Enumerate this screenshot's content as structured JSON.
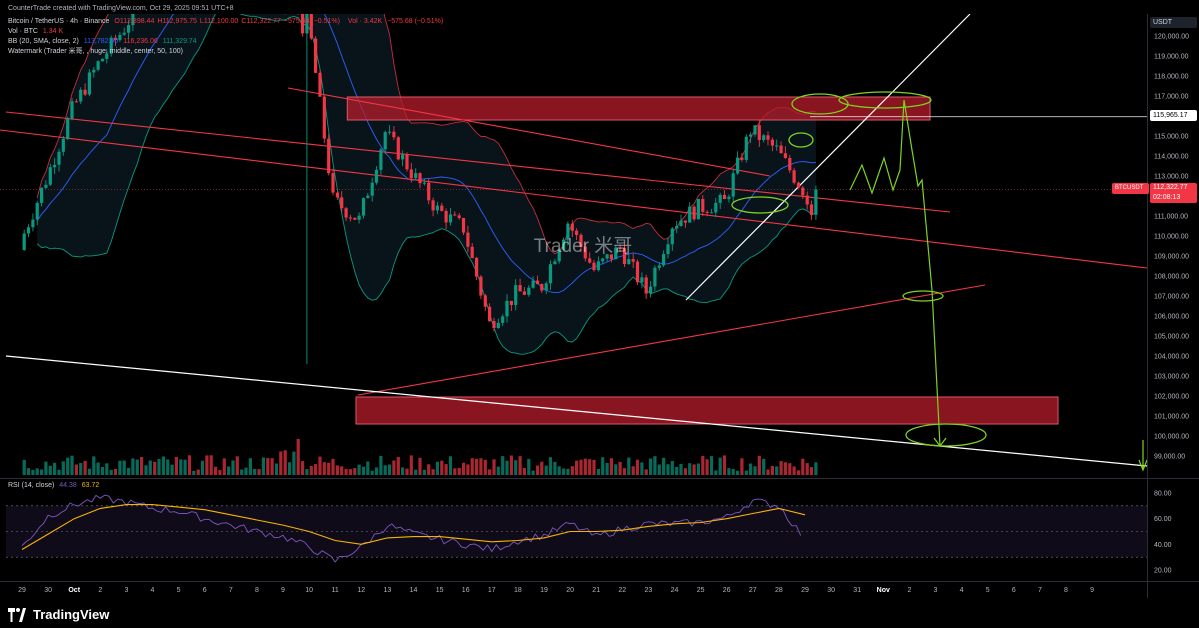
{
  "header": {
    "created_by": "CounterTrade created with TradingView.com, Oct 29, 2025 09:51 UTC+8",
    "symbol": "Bitcoin / TetherUS · 4h · Binance",
    "ohlc": [
      {
        "k": "O",
        "v": "112,898.44"
      },
      {
        "k": "H",
        "v": "112,975.75"
      },
      {
        "k": "L",
        "v": "112,100.00"
      },
      {
        "k": "C",
        "v": "112,322.77"
      },
      {
        "k": "",
        "v": "−575.68 (−0.51%)"
      }
    ],
    "vol_overlay": "Vol · 3.42K",
    "vol_change": "−575.68 (−0.51%)",
    "vol_line": "Vol · BTC",
    "vol_value": "1.34 K",
    "bb_line": "BB (20, SMA, close, 2)",
    "bb_values": [
      "113,782.90",
      "116,236.06",
      "111,329.74"
    ],
    "watermark_line": "Watermark (Trader 米哥, , huge, middle, center, 50, 100)"
  },
  "watermark_text": "Trader 米哥",
  "price_axis": {
    "currency": "USDT",
    "ticks": [
      "120,000.00",
      "119,000.00",
      "118,000.00",
      "117,000.00",
      "116,000.00",
      "115,000.00",
      "114,000.00",
      "113,000.00",
      "112,000.00",
      "111,000.00",
      "110,000.00",
      "109,000.00",
      "108,000.00",
      "107,000.00",
      "106,000.00",
      "105,000.00",
      "104,000.00",
      "103,000.00",
      "102,000.00",
      "101,000.00",
      "100,000.00",
      "99,000.00"
    ],
    "tag_level": "115,965.17",
    "tag_symbol": "BTCUSDT",
    "tag_price": "112,322.77",
    "tag_countdown": "02:08:13"
  },
  "rsi": {
    "label": "RSI (14, close)",
    "value1": "44.38",
    "value2": "63.72",
    "ticks": [
      "80.00",
      "60.00",
      "40.00",
      "20.00"
    ]
  },
  "time_axis": {
    "labels": [
      "29",
      "30",
      "Oct",
      "2",
      "3",
      "4",
      "5",
      "6",
      "7",
      "8",
      "9",
      "10",
      "11",
      "12",
      "13",
      "14",
      "15",
      "16",
      "17",
      "18",
      "19",
      "20",
      "21",
      "22",
      "23",
      "24",
      "25",
      "26",
      "27",
      "28",
      "29",
      "30",
      "31",
      "Nov",
      "2",
      "3",
      "4",
      "5",
      "6",
      "7",
      "8",
      "9"
    ]
  },
  "branding": {
    "name": "TradingView"
  },
  "colors": {
    "bg": "#000000",
    "up": "#089981",
    "down": "#f23645",
    "bb_basis": "#2962ff",
    "bb_band": "#089981",
    "projection": "#7ed321",
    "zone": "#b71c2c",
    "trendline_red": "#f23645",
    "trendline_white": "#ffffff",
    "rsi_line": "#7e57c2",
    "rsi_ma": "#f7b500"
  },
  "chart_data": [
    {
      "type": "candlestick",
      "title": "Bitcoin / TetherUS · 4h · Binance",
      "ylim": [
        98300,
        121300
      ],
      "last_price": 112322.77,
      "marked_level": 115965.17,
      "supply_zone": [
        115800,
        116950
      ],
      "demand_zone": [
        100600,
        101950
      ],
      "projected_target": 99800,
      "path_points": [
        {
          "d": "Sep 29",
          "c": 109600
        },
        {
          "d": "Sep 30",
          "c": 112800
        },
        {
          "d": "Oct 1",
          "c": 116300
        },
        {
          "d": "Oct 2",
          "c": 118600
        },
        {
          "d": "Oct 3",
          "c": 120400
        },
        {
          "d": "Oct 4",
          "c": 122500
        },
        {
          "d": "Oct 5",
          "c": 124500
        },
        {
          "d": "Oct 6",
          "c": 124800
        },
        {
          "d": "Oct 7",
          "c": 121400
        },
        {
          "d": "Oct 8",
          "c": 123300
        },
        {
          "d": "Oct 9",
          "c": 121500
        },
        {
          "d": "Oct 10",
          "c": 121300
        },
        {
          "d": "Oct 11",
          "c": 111800
        },
        {
          "d": "Oct 12",
          "c": 110800
        },
        {
          "d": "Oct 13",
          "c": 115200
        },
        {
          "d": "Oct 14",
          "c": 113200
        },
        {
          "d": "Oct 15",
          "c": 111300
        },
        {
          "d": "Oct 16",
          "c": 110400
        },
        {
          "d": "Oct 17",
          "c": 105600
        },
        {
          "d": "Oct 18",
          "c": 107100
        },
        {
          "d": "Oct 19",
          "c": 107500
        },
        {
          "d": "Oct 20",
          "c": 110700
        },
        {
          "d": "Oct 21",
          "c": 108300
        },
        {
          "d": "Oct 22",
          "c": 109400
        },
        {
          "d": "Oct 23",
          "c": 107200
        },
        {
          "d": "Oct 24",
          "c": 110600
        },
        {
          "d": "Oct 25",
          "c": 111400
        },
        {
          "d": "Oct 26",
          "c": 111700
        },
        {
          "d": "Oct 27",
          "c": 115300
        },
        {
          "d": "Oct 28",
          "c": 114300
        },
        {
          "d": "Oct 29",
          "c": 112322.77
        }
      ],
      "projection_points": [
        {
          "d": "Oct 29",
          "v": 112322
        },
        {
          "d": "Oct 30",
          "v": 113000
        },
        {
          "d": "Oct 31",
          "v": 112800
        },
        {
          "d": "Oct 31",
          "v": 116900
        },
        {
          "d": "Nov 1",
          "v": 112600
        },
        {
          "d": "Nov 1",
          "v": 107000
        },
        {
          "d": "Nov 1",
          "v": 99700
        }
      ],
      "ylabel": "USDT"
    },
    {
      "type": "line",
      "title": "RSI (14, close)",
      "ylim": [
        15,
        88
      ],
      "series": [
        {
          "name": "RSI",
          "values": [
            38,
            62,
            71,
            76,
            73,
            68,
            66,
            60,
            55,
            50,
            46,
            38,
            27,
            38,
            55,
            48,
            44,
            40,
            36,
            43,
            47,
            56,
            46,
            52,
            56,
            56,
            57,
            61,
            74,
            70,
            44
          ]
        },
        {
          "name": "RSI MA",
          "values": [
            36,
            48,
            60,
            68,
            71,
            71,
            69,
            67,
            63,
            59,
            55,
            50,
            43,
            40,
            45,
            46,
            46,
            44,
            42,
            43,
            45,
            50,
            50,
            51,
            54,
            56,
            57,
            60,
            64,
            68,
            63
          ]
        }
      ],
      "reference_levels": [
        70,
        50,
        30
      ]
    }
  ]
}
